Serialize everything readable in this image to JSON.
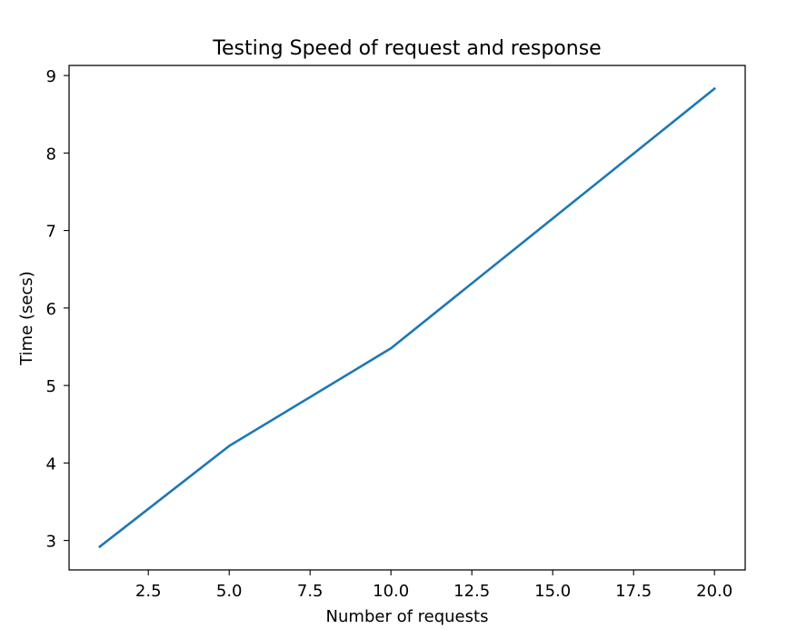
{
  "chart_data": {
    "type": "line",
    "title": "Testing Speed of request and response",
    "xlabel": "Number of requests",
    "ylabel": "Time (secs)",
    "xlim": [
      0.05,
      20.95
    ],
    "ylim": [
      2.62,
      9.13
    ],
    "x": [
      1,
      5,
      10,
      20
    ],
    "series": [
      {
        "values": [
          2.92,
          4.22,
          5.48,
          8.83
        ],
        "color": "#1f77b4"
      }
    ],
    "xticks": [
      {
        "value": 2.5,
        "label": "2.5"
      },
      {
        "value": 5.0,
        "label": "5.0"
      },
      {
        "value": 7.5,
        "label": "7.5"
      },
      {
        "value": 10.0,
        "label": "10.0"
      },
      {
        "value": 12.5,
        "label": "12.5"
      },
      {
        "value": 15.0,
        "label": "15.0"
      },
      {
        "value": 17.5,
        "label": "17.5"
      },
      {
        "value": 20.0,
        "label": "20.0"
      }
    ],
    "yticks": [
      {
        "value": 3,
        "label": "3"
      },
      {
        "value": 4,
        "label": "4"
      },
      {
        "value": 5,
        "label": "5"
      },
      {
        "value": 6,
        "label": "6"
      },
      {
        "value": 7,
        "label": "7"
      },
      {
        "value": 8,
        "label": "8"
      },
      {
        "value": 9,
        "label": "9"
      }
    ],
    "grid": false,
    "legend": "none"
  }
}
